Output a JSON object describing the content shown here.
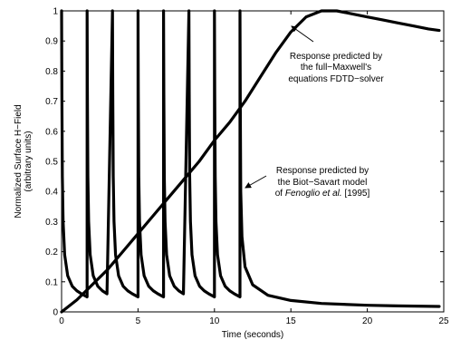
{
  "chart_data": {
    "type": "line",
    "title": "",
    "xlabel": "Time (seconds)",
    "ylabel_line1": "Normalized Surface H−Field",
    "ylabel_line2": "(arbitrary units)",
    "xlim": [
      0,
      25
    ],
    "ylim": [
      0,
      1
    ],
    "grid": false,
    "xticks": [
      "0",
      "5",
      "10",
      "15",
      "20",
      "25"
    ],
    "yticks": [
      "0",
      "0.1",
      "0.2",
      "0.3",
      "0.4",
      "0.5",
      "0.6",
      "0.7",
      "0.8",
      "0.9",
      "1"
    ],
    "series": [
      {
        "label_lines": [
          "Response predicted by",
          "the full−Maxwell's",
          "equations FDTD−solver"
        ],
        "x": [
          0,
          1,
          2,
          3,
          4,
          5,
          6,
          7,
          8,
          9,
          10,
          11,
          12,
          13,
          14,
          15,
          16,
          17,
          18,
          19,
          20,
          21,
          22,
          23,
          24,
          24.7
        ],
        "y": [
          0,
          0.04,
          0.09,
          0.14,
          0.2,
          0.26,
          0.32,
          0.38,
          0.44,
          0.5,
          0.57,
          0.63,
          0.7,
          0.78,
          0.86,
          0.93,
          0.98,
          1,
          1,
          0.99,
          0.98,
          0.97,
          0.96,
          0.95,
          0.94,
          0.935
        ]
      },
      {
        "label_lines": [
          "Response predicted by",
          "the Biot−Savart model",
          "of ",
          "Fenoglio et al.",
          " [1995]"
        ],
        "pulse_times": [
          0,
          1.67,
          3.33,
          5,
          6.67,
          8.33,
          10,
          11.67
        ],
        "decay_samples": {
          "dt": [
            0,
            0.02,
            0.05,
            0.1,
            0.2,
            0.4,
            0.7,
            1.0,
            1.3,
            1.67
          ],
          "y": [
            1,
            0.72,
            0.45,
            0.3,
            0.19,
            0.12,
            0.085,
            0.07,
            0.06,
            0.05
          ]
        },
        "tail": {
          "x": [
            11.67,
            11.69,
            11.72,
            11.8,
            12,
            12.5,
            13.5,
            15,
            17,
            20,
            22,
            24.7
          ],
          "y": [
            1,
            0.7,
            0.4,
            0.25,
            0.15,
            0.09,
            0.055,
            0.038,
            0.028,
            0.022,
            0.02,
            0.018
          ]
        }
      }
    ]
  }
}
